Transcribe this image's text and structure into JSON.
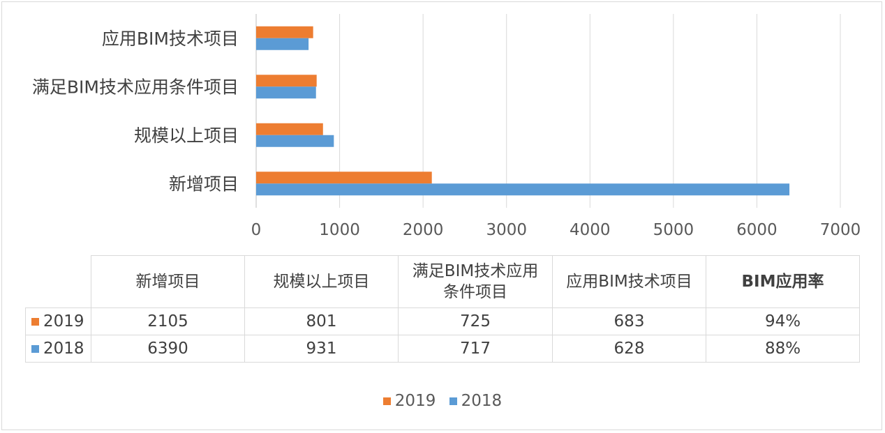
{
  "chart_data": {
    "type": "bar",
    "orientation": "horizontal",
    "categories": [
      "新增项目",
      "规模以上项目",
      "满足BIM技术应用条件项目",
      "应用BIM技术项目"
    ],
    "series": [
      {
        "name": "2019",
        "color": "#ED7D31",
        "values": [
          2105,
          801,
          725,
          683
        ]
      },
      {
        "name": "2018",
        "color": "#5B9BD5",
        "values": [
          6390,
          931,
          717,
          628
        ]
      }
    ],
    "xlim": [
      0,
      7000
    ],
    "xticks": [
      "0",
      "1000",
      "2000",
      "3000",
      "4000",
      "5000",
      "6000",
      "7000"
    ],
    "grid": true,
    "legend_position": "bottom"
  },
  "data_table": {
    "headers": [
      "新增项目",
      "规模以上项目",
      "满足BIM技术应用\n条件项目",
      "应用BIM技术项目",
      "BIM应用率"
    ],
    "rows": [
      {
        "series": "2019",
        "color": "#ED7D31",
        "cells": [
          "2105",
          "801",
          "725",
          "683",
          "94%"
        ]
      },
      {
        "series": "2018",
        "color": "#5B9BD5",
        "cells": [
          "6390",
          "931",
          "717",
          "628",
          "88%"
        ]
      }
    ]
  },
  "legend": [
    {
      "name": "2019",
      "color": "#ED7D31"
    },
    {
      "name": "2018",
      "color": "#5B9BD5"
    }
  ]
}
